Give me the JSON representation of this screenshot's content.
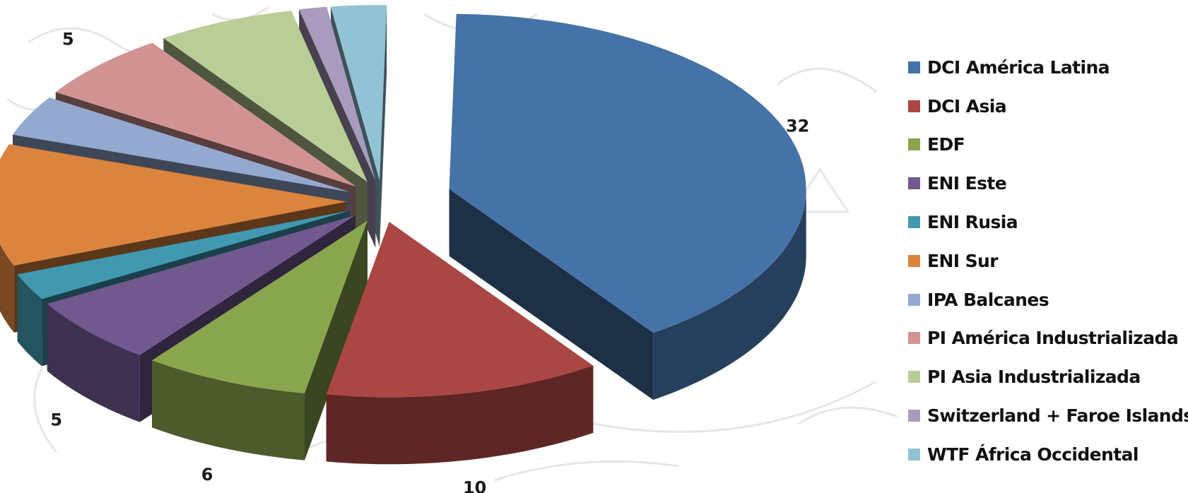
{
  "chart_data": {
    "type": "pie",
    "title": "",
    "legend_position": "right",
    "series": [
      {
        "label": "DCI América Latina",
        "value": 32,
        "color": "#4572A7"
      },
      {
        "label": "DCI Asia",
        "value": 10,
        "color": "#AA4643"
      },
      {
        "label": "EDF",
        "value": 6,
        "color": "#89A54E"
      },
      {
        "label": "ENI Este",
        "value": 5,
        "color": "#71588F"
      },
      {
        "label": "ENI Rusia",
        "value": 2,
        "color": "#4198AF"
      },
      {
        "label": "ENI Sur",
        "value": 9,
        "color": "#DB843D"
      },
      {
        "label": "IPA Balcanes",
        "value": 3,
        "color": "#93A9CF"
      },
      {
        "label": "PI América Industrializada",
        "value": 5,
        "color": "#D19392"
      },
      {
        "label": "PI Asia Industrializada",
        "value": 5,
        "color": "#B9CD96"
      },
      {
        "label": "Switzerland + Faroe Islands",
        "value": 1,
        "color": "#A99BBD"
      },
      {
        "label": "WTF África Occidental",
        "value": 2,
        "color": "#91C3D5"
      }
    ]
  }
}
